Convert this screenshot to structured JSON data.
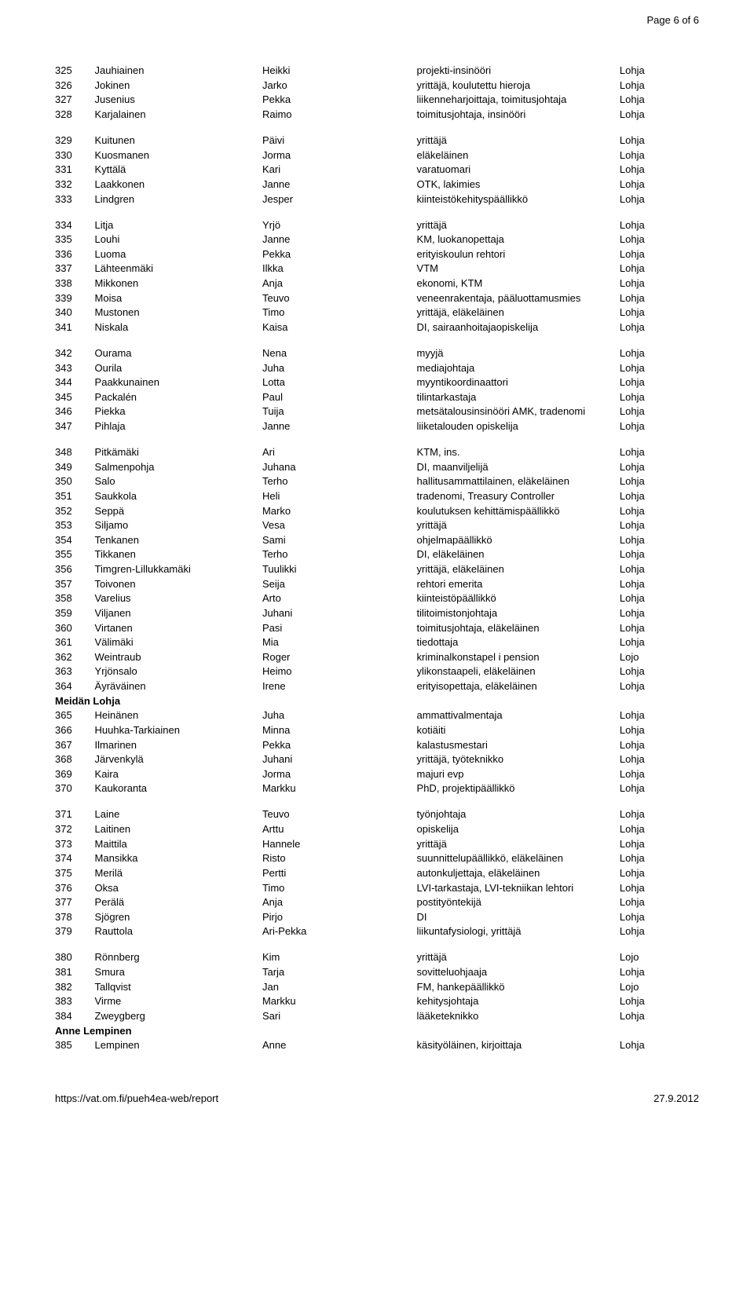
{
  "header": {
    "page_label": "Page 6 of 6"
  },
  "footer": {
    "url": "https://vat.om.fi/pueh4ea-web/report",
    "date": "27.9.2012"
  },
  "colors": {
    "text": "#000000",
    "background": "#ffffff"
  },
  "blocks": [
    {
      "rows": [
        [
          "325",
          "Jauhiainen",
          "Heikki",
          "projekti-insinööri",
          "Lohja"
        ],
        [
          "326",
          "Jokinen",
          "Jarko",
          "yrittäjä, koulutettu hieroja",
          "Lohja"
        ],
        [
          "327",
          "Jusenius",
          "Pekka",
          "liikenneharjoittaja, toimitusjohtaja",
          "Lohja"
        ],
        [
          "328",
          "Karjalainen",
          "Raimo",
          "toimitusjohtaja, insinööri",
          "Lohja"
        ]
      ]
    },
    {
      "rows": [
        [
          "329",
          "Kuitunen",
          "Päivi",
          "yrittäjä",
          "Lohja"
        ],
        [
          "330",
          "Kuosmanen",
          "Jorma",
          "eläkeläinen",
          "Lohja"
        ],
        [
          "331",
          "Kyttälä",
          "Kari",
          "varatuomari",
          "Lohja"
        ],
        [
          "332",
          "Laakkonen",
          "Janne",
          "OTK, lakimies",
          "Lohja"
        ],
        [
          "333",
          "Lindgren",
          "Jesper",
          "kiinteistökehityspäällikkö",
          "Lohja"
        ]
      ]
    },
    {
      "rows": [
        [
          "334",
          "Litja",
          "Yrjö",
          "yrittäjä",
          "Lohja"
        ],
        [
          "335",
          "Louhi",
          "Janne",
          "KM, luokanopettaja",
          "Lohja"
        ],
        [
          "336",
          "Luoma",
          "Pekka",
          "erityiskoulun rehtori",
          "Lohja"
        ],
        [
          "337",
          "Lähteenmäki",
          "Ilkka",
          "VTM",
          "Lohja"
        ],
        [
          "338",
          "Mikkonen",
          "Anja",
          "ekonomi, KTM",
          "Lohja"
        ],
        [
          "339",
          "Moisa",
          "Teuvo",
          "veneenrakentaja, pääluottamusmies",
          "Lohja"
        ],
        [
          "340",
          "Mustonen",
          "Timo",
          "yrittäjä, eläkeläinen",
          "Lohja"
        ],
        [
          "341",
          "Niskala",
          "Kaisa",
          "DI, sairaanhoitajaopiskelija",
          "Lohja"
        ]
      ]
    },
    {
      "rows": [
        [
          "342",
          "Ourama",
          "Nena",
          "myyjä",
          "Lohja"
        ],
        [
          "343",
          "Ourila",
          "Juha",
          "mediajohtaja",
          "Lohja"
        ],
        [
          "344",
          "Paakkunainen",
          "Lotta",
          "myyntikoordinaattori",
          "Lohja"
        ],
        [
          "345",
          "Packalén",
          "Paul",
          "tilintarkastaja",
          "Lohja"
        ],
        [
          "346",
          "Piekka",
          "Tuija",
          "metsätalousinsinööri AMK, tradenomi",
          "Lohja"
        ],
        [
          "347",
          "Pihlaja",
          "Janne",
          "liiketalouden opiskelija",
          "Lohja"
        ]
      ]
    },
    {
      "rows": [
        [
          "348",
          "Pitkämäki",
          "Ari",
          "KTM, ins.",
          "Lohja"
        ],
        [
          "349",
          "Salmenpohja",
          "Juhana",
          "DI, maanviljelijä",
          "Lohja"
        ],
        [
          "350",
          "Salo",
          "Terho",
          "hallitusammattilainen, eläkeläinen",
          "Lohja"
        ],
        [
          "351",
          "Saukkola",
          "Heli",
          "tradenomi, Treasury Controller",
          "Lohja"
        ],
        [
          "352",
          "Seppä",
          "Marko",
          "koulutuksen kehittämispäällikkö",
          "Lohja"
        ],
        [
          "353",
          "Siljamo",
          "Vesa",
          "yrittäjä",
          "Lohja"
        ],
        [
          "354",
          "Tenkanen",
          "Sami",
          "ohjelmapäällikkö",
          "Lohja"
        ],
        [
          "355",
          "Tikkanen",
          "Terho",
          "DI, eläkeläinen",
          "Lohja"
        ],
        [
          "356",
          "Timgren-Lillukkamäki",
          "Tuulikki",
          "yrittäjä, eläkeläinen",
          "Lohja"
        ],
        [
          "357",
          "Toivonen",
          "Seija",
          "rehtori emerita",
          "Lohja"
        ],
        [
          "358",
          "Varelius",
          "Arto",
          "kiinteistöpäällikkö",
          "Lohja"
        ],
        [
          "359",
          "Viljanen",
          "Juhani",
          "tilitoimistonjohtaja",
          "Lohja"
        ],
        [
          "360",
          "Virtanen",
          "Pasi",
          "toimitusjohtaja, eläkeläinen",
          "Lohja"
        ],
        [
          "361",
          "Välimäki",
          "Mia",
          "tiedottaja",
          "Lohja"
        ],
        [
          "362",
          "Weintraub",
          "Roger",
          "kriminalkonstapel i pension",
          "Lojo"
        ],
        [
          "363",
          "Yrjönsalo",
          "Heimo",
          "ylikonstaapeli, eläkeläinen",
          "Lohja"
        ],
        [
          "364",
          "Äyräväinen",
          "Irene",
          "erityisopettaja, eläkeläinen",
          "Lohja"
        ]
      ]
    },
    {
      "group": "Meidän Lohja",
      "rows": [
        [
          "365",
          "Heinänen",
          "Juha",
          "ammattivalmentaja",
          "Lohja"
        ],
        [
          "366",
          "Huuhka-Tarkiainen",
          "Minna",
          "kotiäiti",
          "Lohja"
        ],
        [
          "367",
          "Ilmarinen",
          "Pekka",
          "kalastusmestari",
          "Lohja"
        ],
        [
          "368",
          "Järvenkylä",
          "Juhani",
          "yrittäjä, työteknikko",
          "Lohja"
        ],
        [
          "369",
          "Kaira",
          "Jorma",
          "majuri evp",
          "Lohja"
        ],
        [
          "370",
          "Kaukoranta",
          "Markku",
          "PhD, projektipäällikkö",
          "Lohja"
        ]
      ]
    },
    {
      "rows": [
        [
          "371",
          "Laine",
          "Teuvo",
          "työnjohtaja",
          "Lohja"
        ],
        [
          "372",
          "Laitinen",
          "Arttu",
          "opiskelija",
          "Lohja"
        ],
        [
          "373",
          "Maittila",
          "Hannele",
          "yrittäjä",
          "Lohja"
        ],
        [
          "374",
          "Mansikka",
          "Risto",
          "suunnittelupäällikkö, eläkeläinen",
          "Lohja"
        ],
        [
          "375",
          "Merilä",
          "Pertti",
          "autonkuljettaja, eläkeläinen",
          "Lohja"
        ],
        [
          "376",
          "Oksa",
          "Timo",
          "LVI-tarkastaja, LVI-tekniikan lehtori",
          "Lohja"
        ],
        [
          "377",
          "Perälä",
          "Anja",
          "postityöntekijä",
          "Lohja"
        ],
        [
          "378",
          "Sjögren",
          "Pirjo",
          "DI",
          "Lohja"
        ],
        [
          "379",
          "Rauttola",
          "Ari-Pekka",
          "liikuntafysiologi, yrittäjä",
          "Lohja"
        ]
      ]
    },
    {
      "rows": [
        [
          "380",
          "Rönnberg",
          "Kim",
          "yrittäjä",
          "Lojo"
        ],
        [
          "381",
          "Smura",
          "Tarja",
          "sovitteluohjaaja",
          "Lohja"
        ],
        [
          "382",
          "Tallqvist",
          "Jan",
          "FM, hankepäällikkö",
          "Lojo"
        ],
        [
          "383",
          "Virme",
          "Markku",
          "kehitysjohtaja",
          "Lohja"
        ],
        [
          "384",
          "Zweygberg",
          "Sari",
          "lääketeknikko",
          "Lohja"
        ]
      ]
    },
    {
      "group": "Anne Lempinen",
      "rows": [
        [
          "385",
          "Lempinen",
          "Anne",
          "käsityöläinen, kirjoittaja",
          "Lohja"
        ]
      ]
    }
  ]
}
